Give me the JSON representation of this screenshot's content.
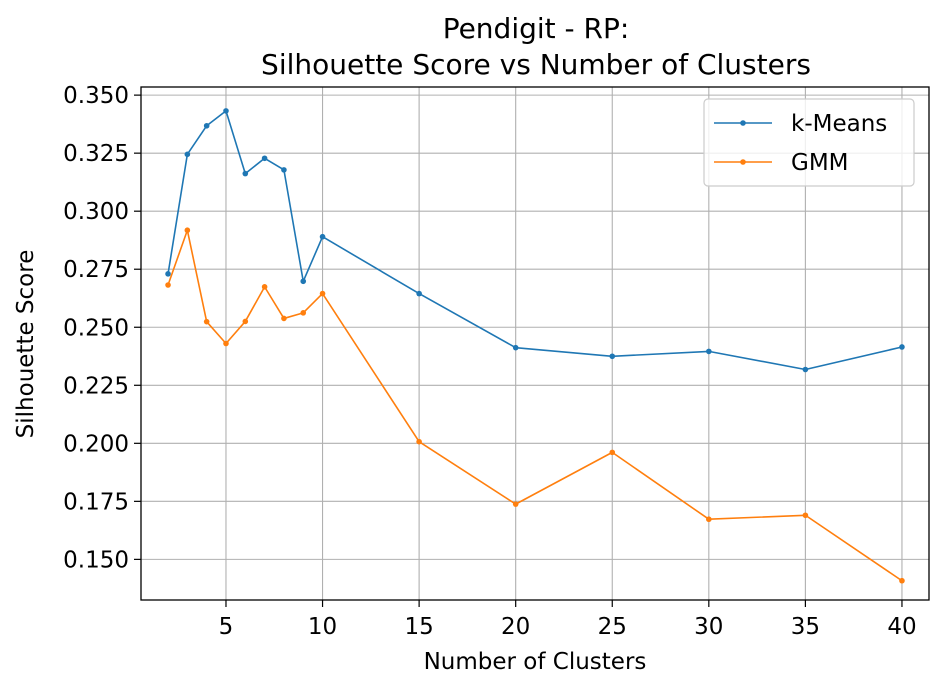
{
  "chart_data": {
    "type": "line",
    "title_line1": "Pendigit - RP:",
    "title_line2": "Silhouette Score vs Number of Clusters",
    "xlabel": "Number of Clusters",
    "ylabel": "Silhouette Score",
    "x": [
      2,
      3,
      4,
      5,
      6,
      7,
      8,
      9,
      10,
      15,
      20,
      25,
      30,
      35,
      40
    ],
    "xlim": [
      0.6,
      41.4
    ],
    "ylim": [
      0.1325,
      0.3535
    ],
    "xticks": [
      5,
      10,
      15,
      20,
      25,
      30,
      35,
      40
    ],
    "yticks": [
      0.15,
      0.175,
      0.2,
      0.225,
      0.25,
      0.275,
      0.3,
      0.325,
      0.35
    ],
    "xtick_labels": [
      "5",
      "10",
      "15",
      "20",
      "25",
      "30",
      "35",
      "40"
    ],
    "ytick_labels": [
      "0.150",
      "0.175",
      "0.200",
      "0.225",
      "0.250",
      "0.275",
      "0.300",
      "0.325",
      "0.350"
    ],
    "grid": true,
    "legend_position": "top-right",
    "series": [
      {
        "name": "k-Means",
        "color": "#1f77b4",
        "values": [
          0.273,
          0.3245,
          0.3368,
          0.3432,
          0.3162,
          0.3228,
          0.3178,
          0.2698,
          0.289,
          0.2645,
          0.2412,
          0.2375,
          0.2396,
          0.2318,
          0.2415
        ]
      },
      {
        "name": "GMM",
        "color": "#ff7f0e",
        "values": [
          0.2682,
          0.2918,
          0.2524,
          0.243,
          0.2525,
          0.2674,
          0.2538,
          0.2562,
          0.2645,
          0.2007,
          0.1738,
          0.1961,
          0.1673,
          0.169,
          0.1408
        ]
      }
    ]
  }
}
